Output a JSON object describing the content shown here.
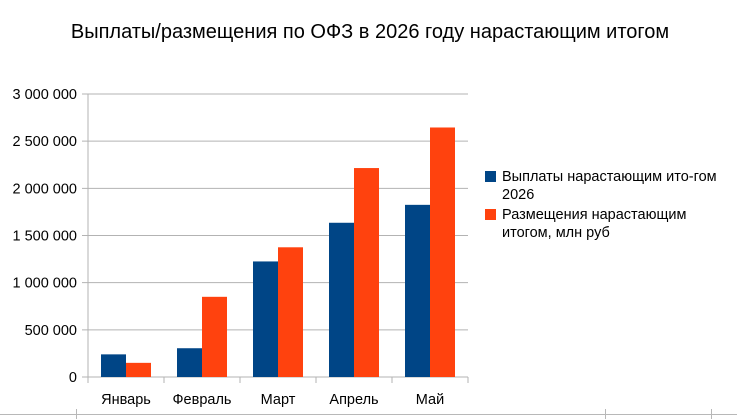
{
  "chart_data": {
    "type": "bar",
    "title": "Выплаты/размещения по ОФЗ в 2026 году нарастающим итогом",
    "categories": [
      "Январь",
      "Февраль",
      "Март",
      "Апрель",
      "Май"
    ],
    "series": [
      {
        "name": "Выплаты нарастающим ито-гом 2026",
        "color": "#004586",
        "values": [
          240000,
          305000,
          1225000,
          1635000,
          1825000
        ]
      },
      {
        "name": "Размещения нарастающим итогом, млн руб",
        "color": "#ff420e",
        "values": [
          150000,
          850000,
          1375000,
          2215000,
          2645000
        ]
      }
    ],
    "ylim": [
      0,
      3000000
    ],
    "yticks": [
      0,
      500000,
      1000000,
      1500000,
      2000000,
      2500000,
      3000000
    ],
    "ytick_labels": [
      "0",
      "500 000",
      "1 000 000",
      "1 500 000",
      "2 000 000",
      "2 500 000",
      "3 000 000"
    ],
    "grid": true,
    "legend_position": "right",
    "xlabel": "",
    "ylabel": ""
  }
}
